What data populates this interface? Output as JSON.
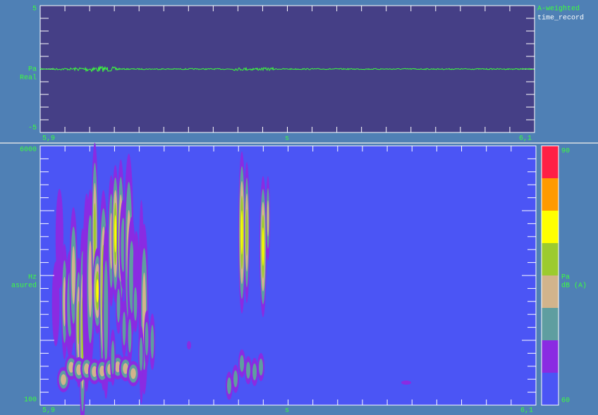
{
  "top_panel": {
    "y_max": "5",
    "y_unit": "Pa",
    "y_kind": "Real",
    "y_min": "-5",
    "legend_type": "A-weighted",
    "legend_name": "time_record",
    "x_start": "5,9",
    "x_unit": "s",
    "x_end": "6,1"
  },
  "bottom_panel": {
    "y_max": "6000",
    "y_unit": "Hz",
    "y_kind": "asured",
    "y_min": "100",
    "x_start": "5,9",
    "x_unit": "s",
    "x_end": "6,1"
  },
  "color_scale": {
    "max": "90",
    "unit": "Pa",
    "label": "dB (A)",
    "min": "60",
    "colors": [
      "#ff1f45",
      "#ff9a00",
      "#ffff00",
      "#9ccb2f",
      "#d2b48c",
      "#5f9ea0",
      "#8a2be2",
      "#4b55f5"
    ]
  }
}
